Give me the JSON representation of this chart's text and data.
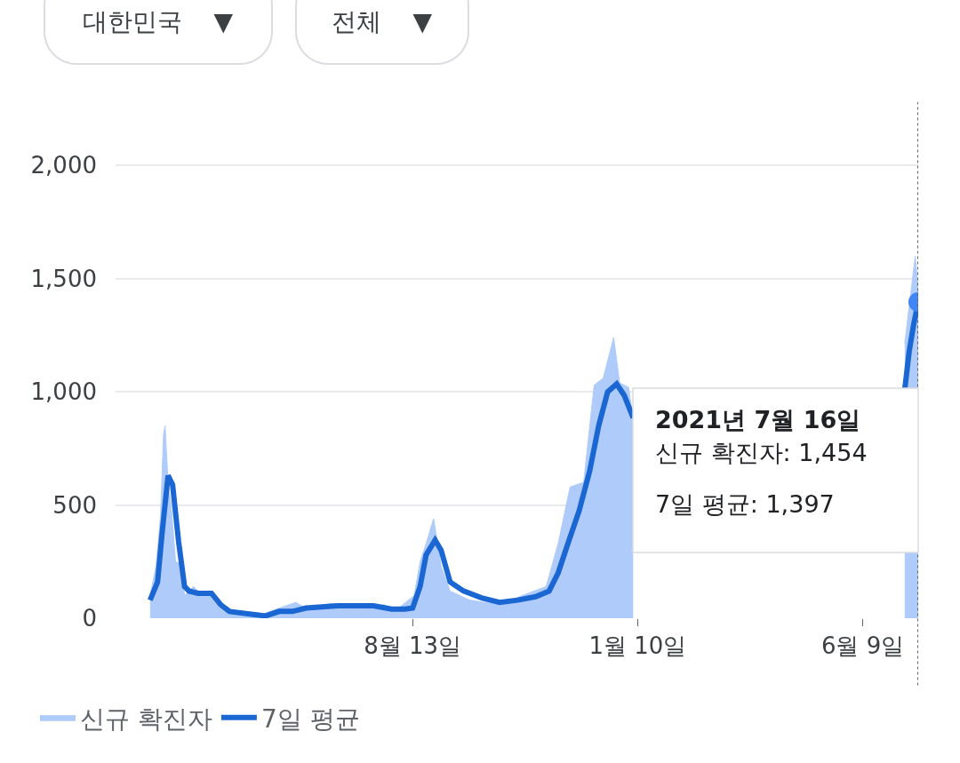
{
  "chart_data": {
    "type": "area",
    "annotations": [
      "대한민국 ▼",
      "전체 ▼",
      "2021년 7월 16일",
      "신규 확진자: 1,454",
      "7일 평균: 1,397"
    ],
    "xlim": [
      "2020-01-28",
      "2021-07-16"
    ],
    "xticks": [
      {
        "value": "2020-08-13",
        "label": "8월 13일"
      },
      {
        "value": "2021-01-10",
        "label": "1월 10일"
      },
      {
        "value": "2021-06-09",
        "label": "6월 9일"
      }
    ],
    "ylim": [
      0,
      2280
    ],
    "yticks": [
      0,
      500,
      {
        "value": 1000,
        "label": "1,000"
      },
      {
        "value": 1500,
        "label": "1,500"
      },
      {
        "value": 2000,
        "label": "2,000"
      }
    ],
    "grid": "y",
    "legend": "bottom left",
    "ref_lines": [
      {
        "axis": "x",
        "value": "2021-07-16",
        "label": null,
        "color": "#5f6368",
        "line_style": "dotted"
      }
    ],
    "series": [
      {
        "name": "신규 확진자",
        "type": "area",
        "color": "#aecbfa",
        "x": [
          "2020-02-20",
          "2020-02-24",
          "2020-02-27",
          "2020-02-29",
          "2020-03-01",
          "2020-03-03",
          "2020-03-05",
          "2020-03-08",
          "2020-03-11",
          "2020-03-14",
          "2020-03-20",
          "2020-03-26",
          "2020-04-01",
          "2020-04-06",
          "2020-04-12",
          "2020-04-20",
          "2020-05-01",
          "2020-05-10",
          "2020-05-27",
          "2020-06-03",
          "2020-06-20",
          "2020-07-10",
          "2020-07-25",
          "2020-08-01",
          "2020-08-14",
          "2020-08-18",
          "2020-08-22",
          "2020-08-27",
          "2020-09-01",
          "2020-09-07",
          "2020-09-20",
          "2020-10-10",
          "2020-10-25",
          "2020-11-10",
          "2020-11-18",
          "2020-11-26",
          "2020-12-05",
          "2020-12-12",
          "2020-12-18",
          "2020-12-25",
          "2020-12-29",
          "2021-01-04",
          "2021-01-07",
          "2021-01-08",
          "2021-07-06",
          "2021-07-07",
          "2021-07-10",
          "2021-07-14",
          "2021-07-16"
        ],
        "values": [
          100,
          230,
          450,
          813,
          850,
          600,
          500,
          250,
          240,
          100,
          140,
          100,
          100,
          50,
          30,
          10,
          5,
          30,
          70,
          45,
          65,
          40,
          60,
          30,
          100,
          250,
          330,
          440,
          230,
          120,
          80,
          60,
          100,
          140,
          330,
          580,
          600,
          1030,
          1060,
          1240,
          1040,
          1020,
          880,
          null,
          null,
          1212,
          1378,
          1600,
          1454
        ]
      },
      {
        "name": "7일 평균",
        "type": "line",
        "color": "#1a66d2",
        "x": [
          "2020-02-20",
          "2020-02-25",
          "2020-02-28",
          "2020-03-03",
          "2020-03-06",
          "2020-03-10",
          "2020-03-14",
          "2020-03-17",
          "2020-03-23",
          "2020-04-01",
          "2020-04-07",
          "2020-04-13",
          "2020-04-25",
          "2020-05-07",
          "2020-05-16",
          "2020-05-25",
          "2020-06-03",
          "2020-06-24",
          "2020-07-06",
          "2020-07-18",
          "2020-07-30",
          "2020-08-08",
          "2020-08-13",
          "2020-08-18",
          "2020-08-22",
          "2020-08-28",
          "2020-09-01",
          "2020-09-07",
          "2020-09-16",
          "2020-09-28",
          "2020-10-10",
          "2020-10-22",
          "2020-11-03",
          "2020-11-12",
          "2020-11-18",
          "2020-11-24",
          "2020-12-02",
          "2020-12-09",
          "2020-12-15",
          "2020-12-21",
          "2020-12-27",
          "2021-01-01",
          "2021-01-07",
          "2021-01-08",
          "2021-07-06",
          "2021-07-07",
          "2021-07-10",
          "2021-07-13",
          "2021-07-16"
        ],
        "values": [
          80,
          160,
          375,
          630,
          590,
          340,
          140,
          120,
          110,
          110,
          60,
          30,
          20,
          10,
          30,
          30,
          45,
          55,
          55,
          55,
          40,
          40,
          45,
          140,
          280,
          345,
          300,
          160,
          120,
          90,
          70,
          80,
          95,
          120,
          200,
          320,
          475,
          650,
          850,
          1000,
          1035,
          985,
          885,
          null,
          null,
          1010,
          1180,
          1300,
          1397
        ]
      }
    ]
  }
}
